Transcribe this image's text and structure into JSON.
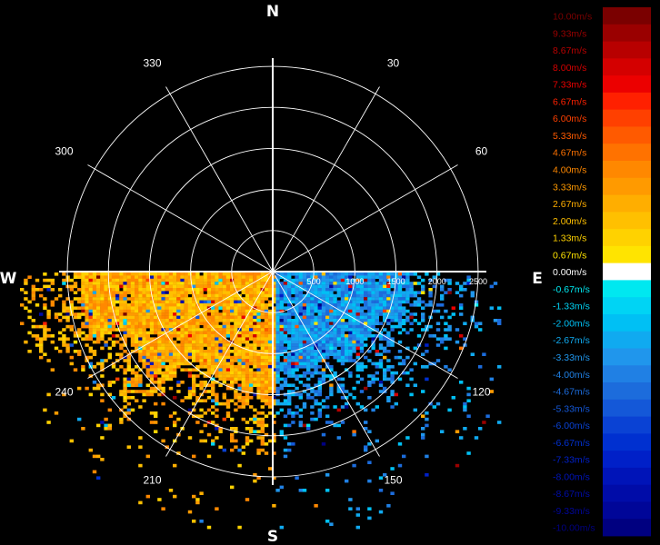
{
  "chart_data": {
    "type": "heatmap",
    "title": "",
    "subtitle": "",
    "radial_unit": "",
    "cardinals": {
      "N": "N",
      "E": "E",
      "S": "S",
      "W": "W"
    },
    "bearing_labels": [
      "30",
      "60",
      "120",
      "150",
      "210",
      "240",
      "300",
      "330"
    ],
    "bearing_degrees": [
      30,
      60,
      120,
      150,
      210,
      240,
      300,
      330
    ],
    "range_labels": [
      "500",
      "1000",
      "1500",
      "2000",
      "2500"
    ],
    "range_values": [
      500,
      1000,
      1500,
      2000,
      2500
    ],
    "range_max": 2600,
    "grid": true,
    "data_sector": {
      "from_deg": 90,
      "to_deg": 270
    },
    "colorbar": {
      "position": "right",
      "labels": [
        "10.00m/s",
        "9.33m/s",
        "8.67m/s",
        "8.00m/s",
        "7.33m/s",
        "6.67m/s",
        "6.00m/s",
        "5.33m/s",
        "4.67m/s",
        "4.00m/s",
        "3.33m/s",
        "2.67m/s",
        "2.00m/s",
        "1.33m/s",
        "0.67m/s",
        "0.00m/s",
        "-0.67m/s",
        "-1.33m/s",
        "-2.00m/s",
        "-2.67m/s",
        "-3.33m/s",
        "-4.00m/s",
        "-4.67m/s",
        "-5.33m/s",
        "-6.00m/s",
        "-6.67m/s",
        "-7.33m/s",
        "-8.00m/s",
        "-8.67m/s",
        "-9.33m/s",
        "-10.00m/s"
      ],
      "values": [
        10.0,
        9.33,
        8.67,
        8.0,
        7.33,
        6.67,
        6.0,
        5.33,
        4.67,
        4.0,
        3.33,
        2.67,
        2.0,
        1.33,
        0.67,
        0.0,
        -0.67,
        -1.33,
        -2.0,
        -2.67,
        -3.33,
        -4.0,
        -4.67,
        -5.33,
        -6.0,
        -6.67,
        -7.33,
        -8.0,
        -8.67,
        -9.33,
        -10.0
      ],
      "colors": [
        "#7a0000",
        "#9a0000",
        "#b80000",
        "#d40000",
        "#ec0000",
        "#ff2000",
        "#ff4000",
        "#ff5a00",
        "#ff7200",
        "#ff8800",
        "#ff9a00",
        "#ffae00",
        "#ffc000",
        "#ffd200",
        "#ffe400",
        "#ffffff",
        "#00e8f0",
        "#00d4f4",
        "#00c0f4",
        "#10aaf0",
        "#2096ec",
        "#2080e4",
        "#1c6cdc",
        "#1458d8",
        "#0a42d4",
        "#0030d0",
        "#0020c8",
        "#0014b8",
        "#000ca8",
        "#000698",
        "#000080"
      ]
    },
    "field_summary": [
      {
        "region": "south-west quadrant (180-270 deg)",
        "dominant_velocity_mps": [
          2.0,
          4.67
        ]
      },
      {
        "region": "south-east quadrant (90-180 deg)",
        "dominant_velocity_mps": [
          -4.67,
          -2.0
        ]
      }
    ]
  }
}
